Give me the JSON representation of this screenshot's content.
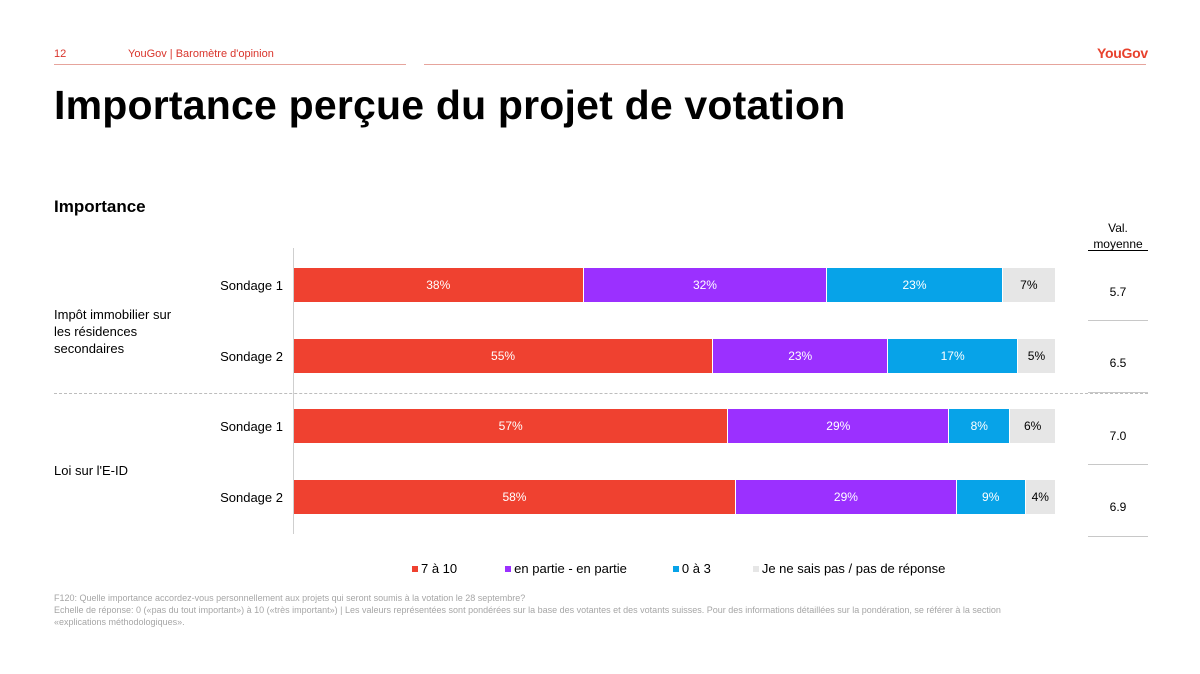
{
  "header": {
    "page_number": "12",
    "source": "YouGov | Baromètre d'opinion",
    "logo": "YouGov"
  },
  "title": "Importance perçue du projet de votation",
  "subtitle": "Importance",
  "mean_header": [
    "Val.",
    "moyenne"
  ],
  "colors": {
    "accent": "#d9342b",
    "c_7_10": "#ef4130",
    "c_partie": "#9b30ff",
    "c_0_3": "#07a3e8",
    "c_nsp": "#e6e6e6"
  },
  "chart_data": {
    "type": "bar",
    "orientation": "horizontal-stacked-100",
    "groups": [
      {
        "label": "Impôt immobilier sur les résidences secondaires",
        "label_lines": [
          "Impôt immobilier sur",
          "les résidences",
          "secondaires"
        ],
        "rows": [
          {
            "label": "Sondage 1",
            "values": [
              38,
              32,
              23,
              7
            ],
            "mean": "5.7"
          },
          {
            "label": "Sondage 2",
            "values": [
              55,
              23,
              17,
              5
            ],
            "mean": "6.5"
          }
        ]
      },
      {
        "label": "Loi sur l'E-ID",
        "label_lines": [
          "Loi sur l'E-ID"
        ],
        "rows": [
          {
            "label": "Sondage 1",
            "values": [
              57,
              29,
              8,
              6
            ],
            "mean": "7.0"
          },
          {
            "label": "Sondage 2",
            "values": [
              58,
              29,
              9,
              4
            ],
            "mean": "6.9"
          }
        ]
      }
    ],
    "series": [
      {
        "name": "7 à 10",
        "color": "#ef4130"
      },
      {
        "name": "en partie - en partie",
        "color": "#9b30ff"
      },
      {
        "name": "0 à 3",
        "color": "#07a3e8"
      },
      {
        "name": "Je ne sais pas / pas de réponse",
        "color": "#e6e6e6"
      }
    ],
    "value_suffix": "%",
    "xlim": [
      0,
      100
    ],
    "legend_position": "bottom"
  },
  "footnote": [
    "F120: Quelle importance accordez-vous personnellement aux projets qui seront soumis  à la votation le 28 septembre?",
    "Echelle de réponse: 0 («pas du tout important») à 10 («très important») | Les valeurs représentées sont pondérées sur la base des votantes et des votants suisses. Pour des informations détaillées sur la pondération, se référer à la section",
    "«explications méthodologiques»."
  ]
}
